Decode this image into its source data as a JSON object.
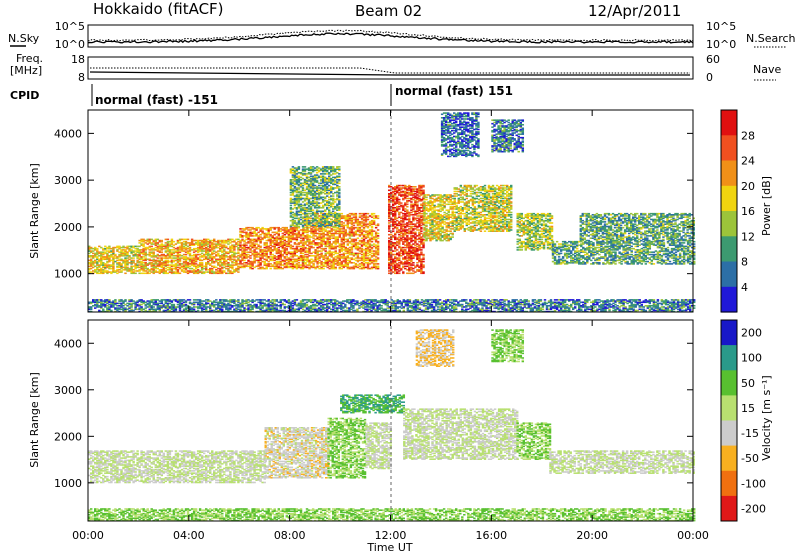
{
  "header": {
    "station": "Hokkaido (fitACF)",
    "beam": "Beam 02",
    "date": "12/Apr/2011"
  },
  "noise_panel": {
    "left_label": "N.Sky",
    "right_label": "N.Search",
    "left_ticks": [
      "10^5",
      "10^0"
    ],
    "right_ticks": [
      "10^5",
      "10^0"
    ]
  },
  "freq_panel": {
    "left_label_1": "Freq.",
    "left_label_2": "[MHz]",
    "right_label": "Nave",
    "left_ticks": [
      "18",
      "8"
    ],
    "right_ticks": [
      "60",
      "0"
    ]
  },
  "cpid": {
    "label": "CPID",
    "mode_1": "normal (fast) -151",
    "mode_2": "normal (fast) 151"
  },
  "x_axis": {
    "label": "Time UT",
    "ticks": [
      "00:00",
      "04:00",
      "08:00",
      "12:00",
      "16:00",
      "20:00",
      "00:00"
    ]
  },
  "chart_data": [
    {
      "type": "heatmap",
      "name": "power",
      "ylabel": "Slant Range [km]",
      "yticks": [
        "1000",
        "2000",
        "3000",
        "4000"
      ],
      "yrange": [
        180,
        4500
      ],
      "xrange_hours": [
        0,
        24
      ],
      "colorbar": {
        "label": "Power [dB]",
        "ticks": [
          "4",
          "8",
          "12",
          "16",
          "20",
          "24",
          "28"
        ],
        "range": [
          0,
          32
        ]
      },
      "colors": [
        "#2018d8",
        "#2c6fa6",
        "#3c9a70",
        "#9cc43a",
        "#f0d410",
        "#f09018",
        "#f05020",
        "#e01010"
      ],
      "echo_regions": [
        {
          "t": [
            0.0,
            2.0
          ],
          "r": [
            1000,
            1600
          ],
          "level": 0.55
        },
        {
          "t": [
            2.0,
            6.0
          ],
          "r": [
            1000,
            1750
          ],
          "level": 0.65
        },
        {
          "t": [
            6.0,
            8.5
          ],
          "r": [
            1100,
            2000
          ],
          "level": 0.75
        },
        {
          "t": [
            8.5,
            11.5
          ],
          "r": [
            1100,
            2300
          ],
          "level": 0.72
        },
        {
          "t": [
            8.0,
            10.0
          ],
          "r": [
            2000,
            3300
          ],
          "level": 0.35
        },
        {
          "t": [
            11.9,
            13.3
          ],
          "r": [
            1000,
            2900
          ],
          "level": 0.9
        },
        {
          "t": [
            13.3,
            14.5
          ],
          "r": [
            1700,
            2700
          ],
          "level": 0.55
        },
        {
          "t": [
            14.5,
            16.8
          ],
          "r": [
            1900,
            2900
          ],
          "level": 0.5
        },
        {
          "t": [
            16.0,
            17.2
          ],
          "r": [
            3600,
            4300
          ],
          "level": 0.2
        },
        {
          "t": [
            14.0,
            15.5
          ],
          "r": [
            3500,
            4450
          ],
          "level": 0.15
        },
        {
          "t": [
            17.0,
            18.4
          ],
          "r": [
            1500,
            2300
          ],
          "level": 0.45
        },
        {
          "t": [
            18.4,
            24.0
          ],
          "r": [
            1200,
            1700
          ],
          "level": 0.3
        },
        {
          "t": [
            19.5,
            24.0
          ],
          "r": [
            1700,
            2300
          ],
          "level": 0.3
        },
        {
          "t": [
            0.0,
            24.0
          ],
          "r": [
            180,
            450
          ],
          "level": 0.2
        }
      ]
    },
    {
      "type": "heatmap",
      "name": "velocity",
      "ylabel": "Slant Range [km]",
      "yticks": [
        "1000",
        "2000",
        "3000",
        "4000"
      ],
      "yrange": [
        180,
        4500
      ],
      "xrange_hours": [
        0,
        24
      ],
      "colorbar": {
        "label": "Velocity [m s⁻¹]",
        "ticks": [
          "200",
          "100",
          "50",
          "15",
          "-15",
          "-50",
          "-100",
          "-200"
        ],
        "range": [
          -250,
          250
        ]
      },
      "colors": [
        "#1818c8",
        "#2a9a8a",
        "#58c030",
        "#b8e070",
        "#cccccc",
        "#f8b020",
        "#f07010",
        "#e01818"
      ],
      "echo_regions": [
        {
          "t": [
            0.0,
            7.0
          ],
          "r": [
            1000,
            1700
          ],
          "level": 0.0
        },
        {
          "t": [
            7.0,
            9.5
          ],
          "r": [
            1100,
            2200
          ],
          "level": -0.15
        },
        {
          "t": [
            9.5,
            11.0
          ],
          "r": [
            1100,
            2400
          ],
          "level": 0.3
        },
        {
          "t": [
            11.0,
            12.0
          ],
          "r": [
            1300,
            2300
          ],
          "level": 0.0
        },
        {
          "t": [
            10.0,
            12.5
          ],
          "r": [
            2500,
            2900
          ],
          "level": 0.55
        },
        {
          "t": [
            12.5,
            17.0
          ],
          "r": [
            1500,
            2600
          ],
          "level": 0.0
        },
        {
          "t": [
            17.0,
            18.3
          ],
          "r": [
            1500,
            2300
          ],
          "level": 0.3
        },
        {
          "t": [
            18.3,
            24.0
          ],
          "r": [
            1200,
            1700
          ],
          "level": 0.0
        },
        {
          "t": [
            16.0,
            17.2
          ],
          "r": [
            3600,
            4300
          ],
          "level": 0.3
        },
        {
          "t": [
            13.0,
            14.5
          ],
          "r": [
            3500,
            4300
          ],
          "level": -0.3
        },
        {
          "t": [
            0.0,
            24.0
          ],
          "r": [
            180,
            450
          ],
          "level": 0.3
        }
      ]
    }
  ]
}
